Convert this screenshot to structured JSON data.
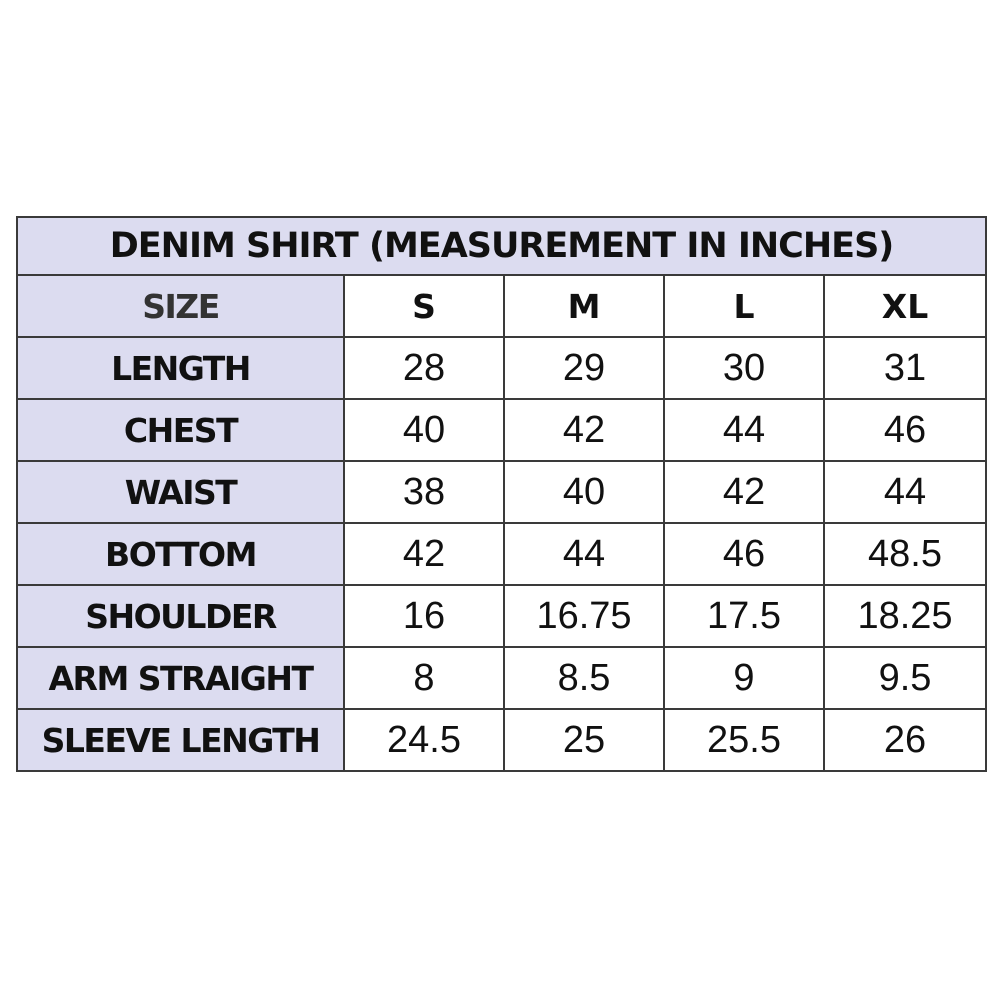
{
  "title": "DENIM SHIRT (MEASUREMENT IN INCHES)",
  "header": {
    "label": "SIZE",
    "sizes": [
      "S",
      "M",
      "L",
      "XL"
    ]
  },
  "rows": [
    {
      "label": "LENGTH",
      "values": [
        "28",
        "29",
        "30",
        "31"
      ]
    },
    {
      "label": "CHEST",
      "values": [
        "40",
        "42",
        "44",
        "46"
      ]
    },
    {
      "label": "WAIST",
      "values": [
        "38",
        "40",
        "42",
        "44"
      ]
    },
    {
      "label": "BOTTOM",
      "values": [
        "42",
        "44",
        "46",
        "48.5"
      ]
    },
    {
      "label": "SHOULDER",
      "values": [
        "16",
        "16.75",
        "17.5",
        "18.25"
      ]
    },
    {
      "label": "ARM STRAIGHT",
      "values": [
        "8",
        "8.5",
        "9",
        "9.5"
      ]
    },
    {
      "label": "SLEEVE LENGTH",
      "values": [
        "24.5",
        "25",
        "25.5",
        "26"
      ]
    }
  ],
  "colors": {
    "label_bg": "#dcdcf0",
    "border": "#3a3a3a"
  }
}
